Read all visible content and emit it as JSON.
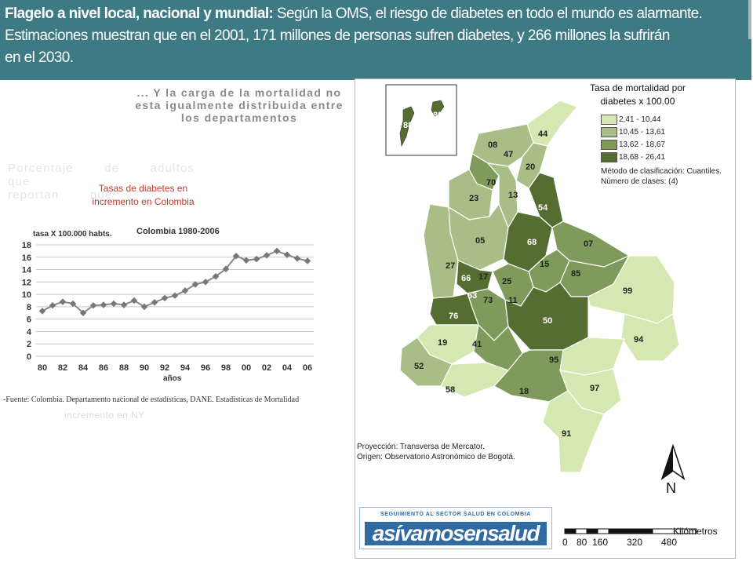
{
  "banner": {
    "line1_bold": "Flagelo a nivel local, nacional y mundial:",
    "line1_rest": " Según la OMS, el riesgo de diabetes  en todo el mundo es alarmante.",
    "line2": "Estimaciones muestran que en el 2001, 171 millones  de personas sufren diabetes,  y 266 millones la sufrirán",
    "line3": "en el 2030."
  },
  "left": {
    "mortality_heading": "... Y la carga de la mortalidad no esta igualmente distribuida entre los departamentos",
    "ghost_line1": "Porcentaje de adultos que",
    "ghost_line2": "reportan que",
    "increase_title": "Tasas de diabetes en incremento en Colombia",
    "ghost_bottom": "incremento en NY",
    "source_note": "-Fuente: Colombia.  Departamento nacional de estadísticas, DANE. Estadísticas de Mortalidad"
  },
  "chart_data": {
    "type": "line",
    "title": "Colombia 1980-2006",
    "ylabel": "tasa  X 100.000 habts.",
    "xlabel": "años",
    "x": [
      80,
      81,
      82,
      83,
      84,
      85,
      86,
      87,
      88,
      89,
      90,
      91,
      92,
      93,
      94,
      95,
      96,
      97,
      98,
      99,
      0,
      1,
      2,
      3,
      4,
      5,
      6
    ],
    "x_tick_labels": [
      "80",
      "82",
      "84",
      "86",
      "88",
      "90",
      "92",
      "94",
      "96",
      "98",
      "00",
      "02",
      "04",
      "06"
    ],
    "y_tick_labels": [
      "0",
      "2",
      "4",
      "6",
      "8",
      "10",
      "12",
      "14",
      "16",
      "18"
    ],
    "values": [
      7.3,
      8.2,
      8.8,
      8.5,
      7.0,
      8.2,
      8.3,
      8.5,
      8.3,
      9.0,
      8.0,
      8.7,
      9.4,
      9.8,
      10.6,
      11.6,
      12.0,
      12.9,
      14.1,
      16.2,
      15.5,
      15.7,
      16.3,
      17.0,
      16.4,
      15.8,
      15.4
    ],
    "ylim": [
      0,
      18
    ],
    "grid": true,
    "color": "#888888"
  },
  "map": {
    "legend_title": "Tasa de mortalidad por diabetes  x 100.00",
    "legend": [
      {
        "label": "2,41 - 10,44",
        "color": "#d5e8b1"
      },
      {
        "label": "10,45 - 13,61",
        "color": "#a8be86"
      },
      {
        "label": "13,62 - 18,67",
        "color": "#7f9a5b"
      },
      {
        "label": "18,68 - 26,41",
        "color": "#566d32"
      }
    ],
    "method_line1": "Método de clasificación: Cuantiles.",
    "method_line2": "Número de clases: (4)",
    "projection_line1": "Proyección: Transversa de Mercator.",
    "projection_line2": "Origen: Observatorio Astronómico de Bogotá.",
    "north": "N",
    "scale_unit": "Kilómetros",
    "scale_ticks": [
      "0",
      "80",
      "160",
      "320",
      "480"
    ],
    "departments": [
      "88",
      "88",
      "44",
      "08",
      "47",
      "20",
      "70",
      "13",
      "23",
      "54",
      "05",
      "68",
      "07",
      "27",
      "15",
      "85",
      "66",
      "17",
      "25",
      "63",
      "73",
      "11",
      "99",
      "76",
      "50",
      "94",
      "19",
      "41",
      "95",
      "52",
      "97",
      "58",
      "18",
      "91"
    ]
  },
  "logo": {
    "top_text": "SEGUIMIENTO AL SECTOR SALUD EN COLOMBIA",
    "main_text": "asívamosensalud"
  }
}
